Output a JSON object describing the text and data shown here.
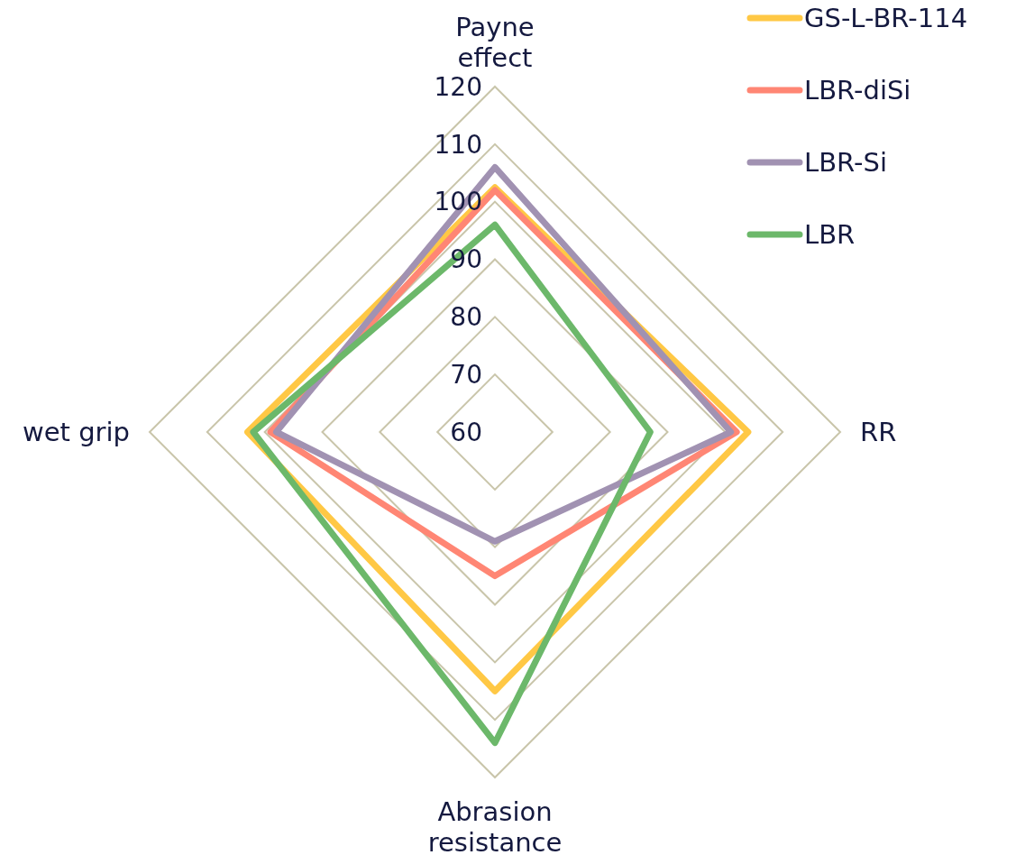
{
  "chart_data": {
    "type": "radar",
    "categories": [
      "Payne effect",
      "RR",
      "Abrasion resistance",
      "wet grip"
    ],
    "series": [
      {
        "name": "GS-L-BR-114",
        "color": "#ffc845",
        "values": [
          102.5,
          104,
          105,
          103
        ]
      },
      {
        "name": "LBR-diSi",
        "color": "#ff8674",
        "values": [
          102,
          102,
          85,
          99
        ]
      },
      {
        "name": "LBR-Si",
        "color": "#a192b2",
        "values": [
          106,
          101,
          79,
          98
        ]
      },
      {
        "name": "LBR",
        "color": "#6cb86a",
        "values": [
          96,
          87,
          114,
          102
        ]
      }
    ],
    "ylim": [
      60,
      120
    ],
    "yticks": [
      60,
      70,
      80,
      90,
      100,
      110,
      120
    ],
    "grid": true,
    "legend": "top right",
    "marker": "none",
    "line_style": "solid"
  }
}
